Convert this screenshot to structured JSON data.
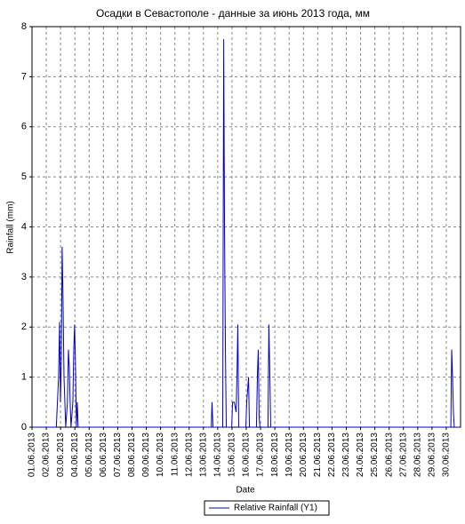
{
  "chart_data": {
    "type": "line",
    "title": "Осадки в Севастополе - данные за июнь 2013 года, мм",
    "x_label": "Date",
    "y_label": "Rainfall (mm)",
    "xlim": [
      1,
      31
    ],
    "ylim": [
      0,
      8
    ],
    "yticks": [
      0,
      1,
      2,
      3,
      4,
      5,
      6,
      7,
      8
    ],
    "xticks": [
      {
        "value": 1,
        "label": "01.06.2013"
      },
      {
        "value": 2,
        "label": "02.06.2013"
      },
      {
        "value": 3,
        "label": "03.06.2013"
      },
      {
        "value": 4,
        "label": "04.06.2013"
      },
      {
        "value": 5,
        "label": "05.06.2013"
      },
      {
        "value": 6,
        "label": "06.06.2013"
      },
      {
        "value": 7,
        "label": "07.06.2013"
      },
      {
        "value": 8,
        "label": "08.06.2013"
      },
      {
        "value": 9,
        "label": "09.06.2013"
      },
      {
        "value": 10,
        "label": "10.06.2013"
      },
      {
        "value": 11,
        "label": "11.06.2013"
      },
      {
        "value": 12,
        "label": "12.06.2013"
      },
      {
        "value": 13,
        "label": "13.06.2013"
      },
      {
        "value": 14,
        "label": "14.06.2013"
      },
      {
        "value": 15,
        "label": "15.06.2013"
      },
      {
        "value": 16,
        "label": "16.06.2013"
      },
      {
        "value": 17,
        "label": "17.06.2013"
      },
      {
        "value": 18,
        "label": "18.06.2013"
      },
      {
        "value": 19,
        "label": "19.06.2013"
      },
      {
        "value": 20,
        "label": "20.06.2013"
      },
      {
        "value": 21,
        "label": "21.06.2013"
      },
      {
        "value": 22,
        "label": "22.06.2013"
      },
      {
        "value": 23,
        "label": "23.06.2013"
      },
      {
        "value": 24,
        "label": "24.06.2013"
      },
      {
        "value": 25,
        "label": "25.06.2013"
      },
      {
        "value": 26,
        "label": "26.06.2013"
      },
      {
        "value": 27,
        "label": "27.06.2013"
      },
      {
        "value": 28,
        "label": "28.06.2013"
      },
      {
        "value": 29,
        "label": "29.06.2013"
      },
      {
        "value": 30,
        "label": "30.06.2013"
      }
    ],
    "grid": true,
    "x": [
      1,
      2.7,
      2.86,
      2.93,
      2.99,
      3.05,
      3.11,
      3.17,
      3.24,
      3.36,
      3.48,
      3.55,
      3.61,
      3.67,
      3.73,
      3.86,
      3.92,
      3.98,
      4.04,
      4.11,
      4.17,
      4.23,
      13.55,
      13.6,
      13.67,
      14.35,
      14.42,
      14.48,
      14.54,
      14.6,
      14.98,
      15.04,
      15.16,
      15.29,
      15.35,
      15.41,
      15.47,
      15.97,
      16.03,
      16.16,
      16.22,
      16.71,
      16.78,
      16.84,
      16.9,
      16.96,
      17.52,
      17.58,
      17.65,
      17.71,
      30.32,
      30.38,
      30.44,
      30.5,
      30.56,
      30.9
    ],
    "series": [
      {
        "name": "Relative Rainfall (Y1)",
        "color": "#0000cc",
        "values": [
          0,
          0,
          1.0,
          2.1,
          0.5,
          1.3,
          3.6,
          2.6,
          1.0,
          0,
          0.5,
          1.55,
          1.2,
          0.5,
          0,
          0.5,
          1.5,
          2.05,
          1.3,
          0,
          0.5,
          0,
          0,
          0.5,
          0,
          0,
          7.75,
          3.85,
          1.55,
          0,
          0,
          0.5,
          0.5,
          0.3,
          1.05,
          2.05,
          0,
          0,
          0.5,
          1.0,
          0,
          0,
          1.05,
          1.55,
          0.2,
          0,
          0,
          2.05,
          1.05,
          0,
          0,
          1.55,
          1.0,
          0.3,
          0,
          0
        ]
      }
    ],
    "legend": "bottom"
  }
}
